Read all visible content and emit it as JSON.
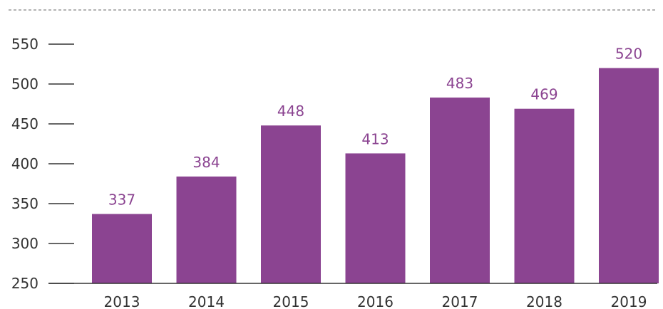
{
  "chart_data": {
    "type": "bar",
    "categories": [
      "2013",
      "2014",
      "2015",
      "2016",
      "2017",
      "2018",
      "2019"
    ],
    "values": [
      337,
      384,
      448,
      413,
      483,
      469,
      520
    ],
    "data_labels": [
      "337",
      "384",
      "448",
      "413",
      "483",
      "469",
      "520"
    ],
    "y_ticks": [
      250,
      300,
      350,
      400,
      450,
      500,
      550
    ],
    "y_tick_labels": [
      "250",
      "300",
      "350",
      "400",
      "450",
      "500",
      "550"
    ],
    "ylim": [
      250,
      550
    ],
    "title": "",
    "xlabel": "",
    "ylabel": "",
    "grid": false,
    "legend": "none",
    "bar_color": "#8B4491",
    "label_color": "#8B4491",
    "axis_color": "#333333",
    "top_rule": "dashed"
  }
}
